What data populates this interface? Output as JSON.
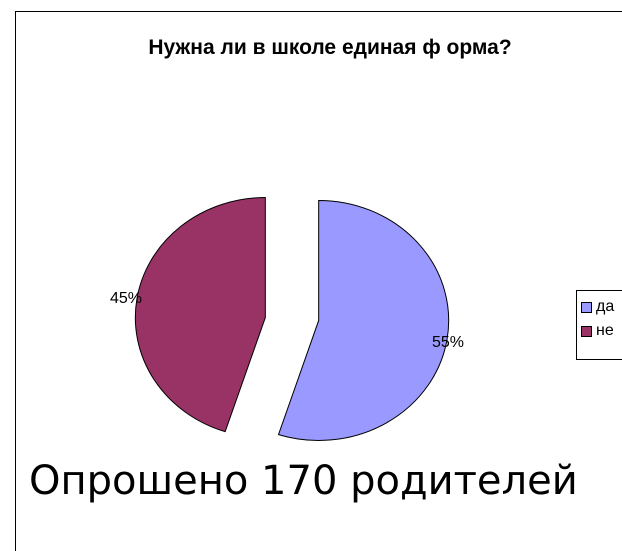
{
  "chart_data": {
    "type": "pie",
    "title": "Нужна ли в школе единая ф орма?",
    "slices": [
      {
        "label": "да",
        "value": 55,
        "percent_label": "55%",
        "color": "#9999ff"
      },
      {
        "label": "не",
        "value": 45,
        "percent_label": "45%",
        "color": "#993366"
      }
    ],
    "legend": {
      "placement": "right",
      "entries": [
        "да",
        "не"
      ]
    },
    "exploded": true
  },
  "caption": "Опрошено 170 родителей"
}
